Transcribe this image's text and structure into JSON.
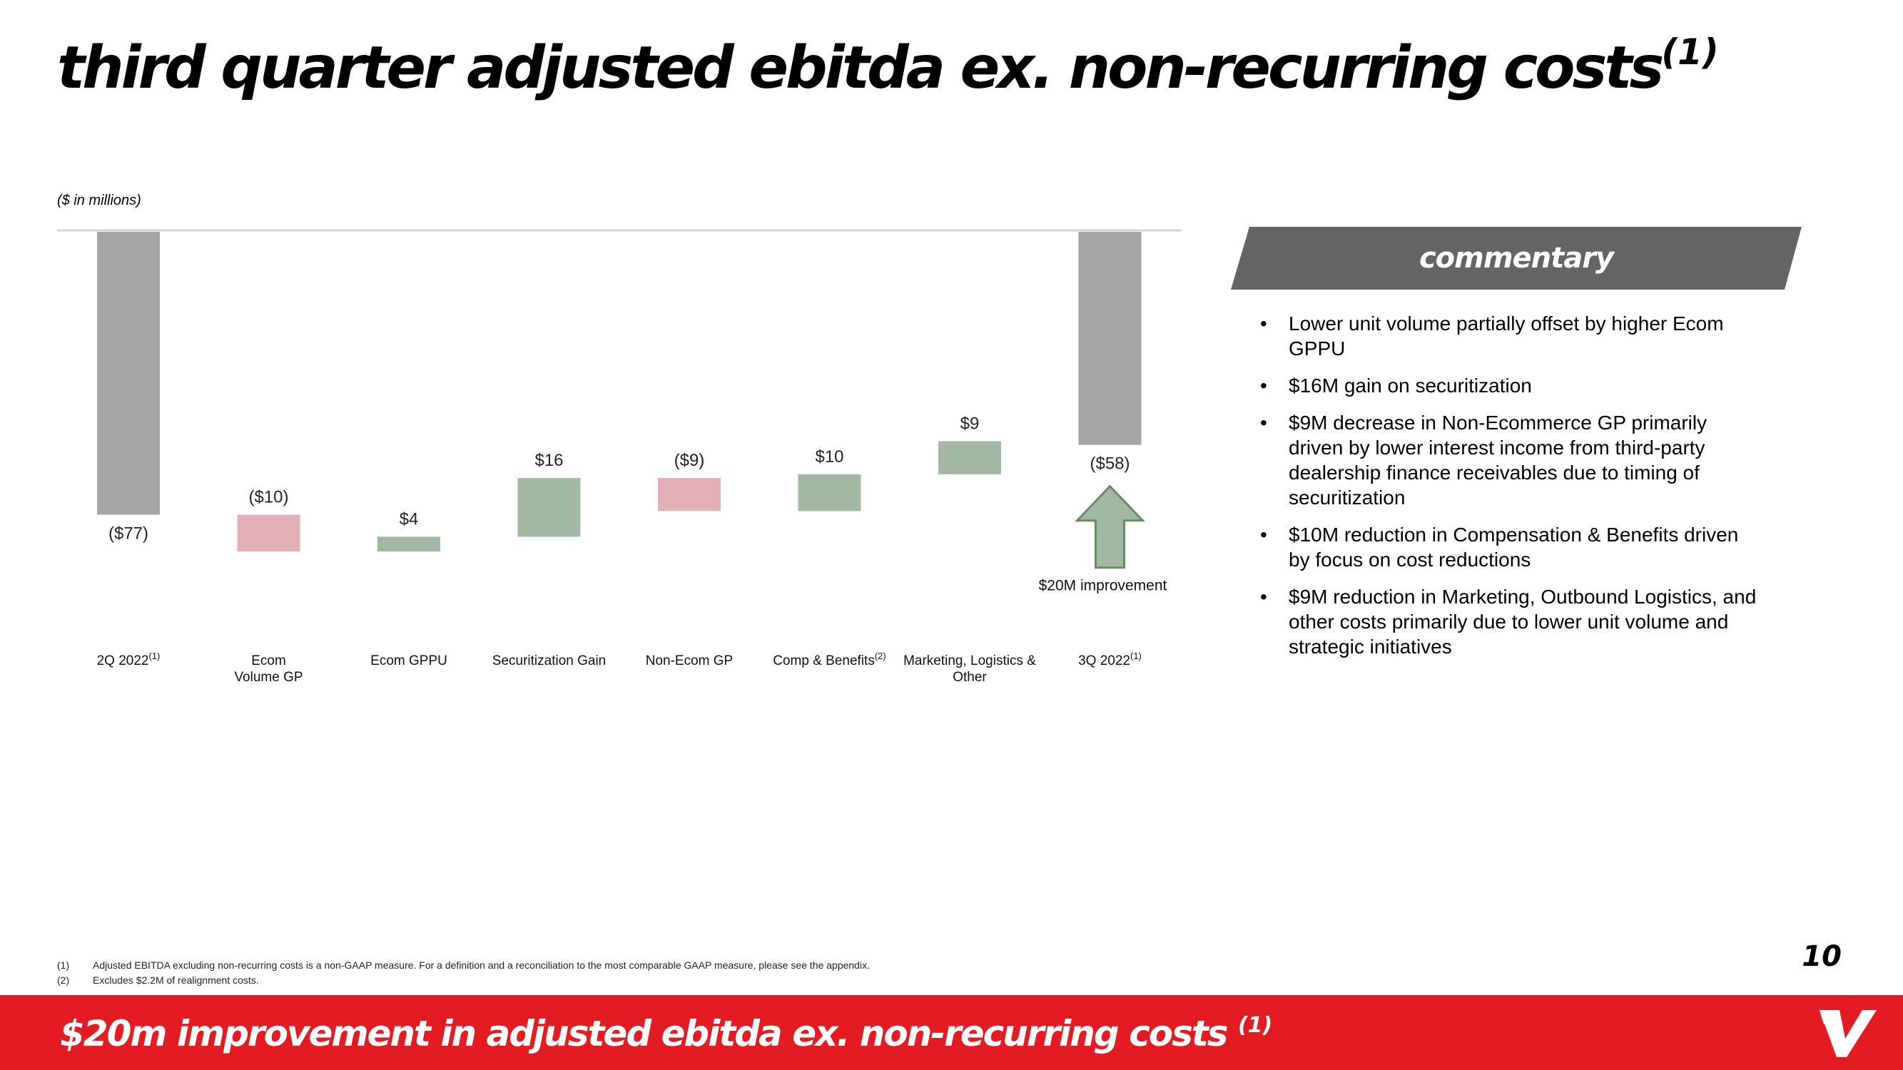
{
  "header": {
    "title": "third quarter adjusted ebitda ex. non-recurring costs",
    "title_sup": "(1)",
    "units": "($ in millions)"
  },
  "chart_data": {
    "type": "waterfall",
    "categories": [
      "2Q 2022",
      "Ecom Volume GP",
      "Ecom GPPU",
      "Securitization Gain",
      "Non-Ecom GP",
      "Comp & Benefits",
      "Marketing, Logistics & Other",
      "3Q 2022"
    ],
    "category_lines": [
      [
        "2Q 2022"
      ],
      [
        "Ecom",
        "Volume GP"
      ],
      [
        "Ecom GPPU"
      ],
      [
        "Securitization Gain"
      ],
      [
        "Non-Ecom GP"
      ],
      [
        "Comp & Benefits"
      ],
      [
        "Marketing, Logistics &",
        "Other"
      ],
      [
        "3Q 2022"
      ]
    ],
    "category_sups": [
      "(1)",
      "",
      "",
      "",
      "",
      "(2)",
      "",
      "(1)"
    ],
    "values": [
      -77,
      -10,
      4,
      16,
      -9,
      10,
      9,
      -58
    ],
    "kinds": [
      "total",
      "delta",
      "delta",
      "delta",
      "delta",
      "delta",
      "delta",
      "total"
    ],
    "value_labels": [
      "($77)",
      "($10)",
      "$4",
      "$16",
      "($9)",
      "$10",
      "$9",
      "($58)"
    ],
    "ylim": [
      -108,
      0
    ],
    "grid": false,
    "annotation": "$20M improvement",
    "colors": {
      "total": "#a5a5a5",
      "increase": "#a3b8a2",
      "decrease": "#e0b0b6",
      "arrow_fill": "#a3b8a2",
      "arrow_stroke": "#6b8a6a"
    }
  },
  "commentary": {
    "title": "commentary",
    "banner_color": "#646464",
    "bullet_char": "•",
    "bullets": [
      "Lower unit volume partially offset by higher Ecom GPPU",
      "$16M gain on securitization",
      "$9M decrease in Non-Ecommerce GP primarily driven by lower interest income from third-party dealership finance receivables due to timing of securitization",
      "$10M reduction in Compensation & Benefits driven by focus on cost reductions",
      "$9M reduction in Marketing, Outbound Logistics, and other costs primarily due to lower unit volume and strategic initiatives"
    ]
  },
  "footnotes": [
    {
      "num": "(1)",
      "text": "Adjusted EBITDA excluding non-recurring costs is a non-GAAP measure. For a definition and a reconciliation to the most comparable GAAP measure, please see the appendix."
    },
    {
      "num": "(2)",
      "text": "Excludes $2.2M of realignment costs."
    }
  ],
  "page_number": "10",
  "footer": {
    "text": "$20m improvement in adjusted ebitda ex. non-recurring costs",
    "sup": "(1)",
    "color": "#e31b23"
  },
  "logo": {
    "icon": "vroom-v-logo"
  }
}
